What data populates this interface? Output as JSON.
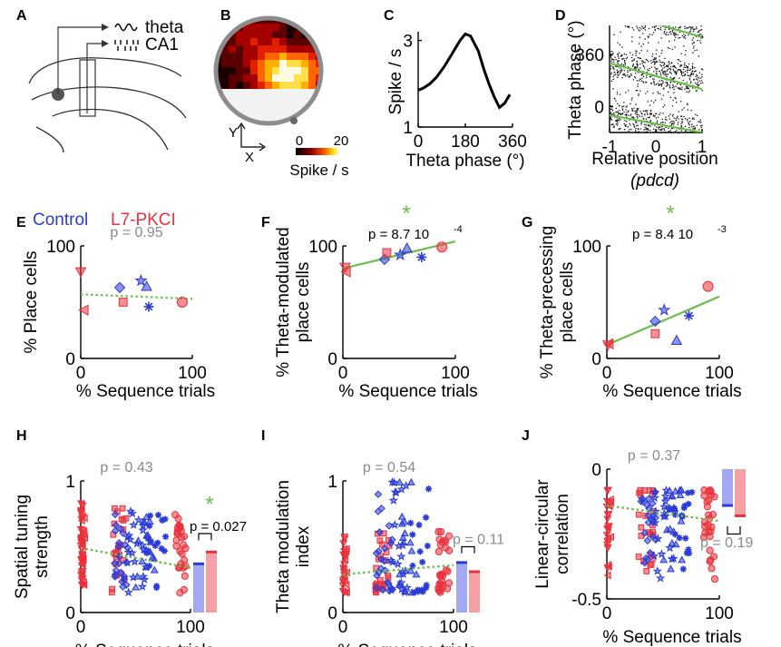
{
  "colors": {
    "control": "#2b3bd6",
    "l7": "#e8323c",
    "fit": "#6abf4b",
    "gray": "#8a8a8a",
    "bar_control": "#a3a8f2",
    "bar_l7": "#f4a0a4"
  },
  "panels": {
    "A": "A",
    "B": "B",
    "C": "C",
    "D": "D",
    "E": "E",
    "F": "F",
    "G": "G",
    "H": "H",
    "I": "I",
    "J": "J"
  },
  "schematic": {
    "theta_label": "theta",
    "ca1_label": "CA1"
  },
  "heatmap": {
    "x_label": "X",
    "y_label": "Y",
    "cbar_min": "0",
    "cbar_max": "20",
    "cbar_label": "Spike / s"
  },
  "legend": {
    "control": "Control",
    "l7": "L7-PKCI"
  },
  "common": {
    "seq_xlabel": "% Sequence trials"
  },
  "chart_data": [
    {
      "id": "C",
      "type": "line",
      "xlabel": "Theta phase (°)",
      "ylabel": "Spike / s",
      "xticks": [
        "0",
        "180",
        "360"
      ],
      "yticks": [
        "1",
        "3"
      ],
      "xlim": [
        0,
        360
      ],
      "ylim": [
        1,
        3.2
      ],
      "x": [
        0,
        20,
        45,
        70,
        100,
        130,
        160,
        180,
        200,
        230,
        250,
        270,
        290,
        310,
        330,
        350
      ],
      "y": [
        1.85,
        1.9,
        2.0,
        2.15,
        2.4,
        2.7,
        3.0,
        3.15,
        3.1,
        2.75,
        2.35,
        2.0,
        1.7,
        1.45,
        1.55,
        1.75
      ]
    },
    {
      "id": "D",
      "type": "scatter",
      "xlabel": "Relative position",
      "xlabel2": "(pdcd)",
      "ylabel": "Theta phase (°)",
      "xticks": [
        "-1",
        "0",
        "1"
      ],
      "yticks": [
        "0",
        "360"
      ],
      "xlim": [
        -1,
        1
      ],
      "ylim": [
        -180,
        560
      ],
      "fit_lines": [
        {
          "x": [
            -1,
            1
          ],
          "y": [
            -60,
            -180
          ]
        },
        {
          "x": [
            -1,
            1
          ],
          "y": [
            300,
            120
          ]
        },
        {
          "x": [
            -1,
            1
          ],
          "y": [
            660,
            480
          ]
        }
      ]
    },
    {
      "id": "E",
      "type": "scatter",
      "ylabel": "% Place cells",
      "xticks": [
        "0",
        "100"
      ],
      "yticks": [
        "0",
        "100"
      ],
      "xlim": [
        0,
        100
      ],
      "ylim": [
        0,
        100
      ],
      "p_text": "p = 0.95",
      "fit": {
        "x": [
          0,
          100
        ],
        "y": [
          57,
          53
        ],
        "style": "dotted"
      },
      "points": [
        {
          "x": 0,
          "y": 77,
          "g": "l7",
          "m": "tri-down"
        },
        {
          "x": 3,
          "y": 43,
          "g": "l7",
          "m": "tri-left"
        },
        {
          "x": 35,
          "y": 63,
          "g": "control",
          "m": "diamond"
        },
        {
          "x": 38,
          "y": 50,
          "g": "l7",
          "m": "square"
        },
        {
          "x": 54,
          "y": 69,
          "g": "control",
          "m": "star"
        },
        {
          "x": 59,
          "y": 64,
          "g": "control",
          "m": "tri-up"
        },
        {
          "x": 61,
          "y": 46,
          "g": "control",
          "m": "asterisk"
        },
        {
          "x": 91,
          "y": 50,
          "g": "l7",
          "m": "circle"
        }
      ]
    },
    {
      "id": "F",
      "type": "scatter",
      "ylabel": "% Theta-modulated",
      "ylabel2": "place cells",
      "xticks": [
        "0",
        "100"
      ],
      "yticks": [
        "0",
        "100"
      ],
      "xlim": [
        0,
        100
      ],
      "ylim": [
        0,
        100
      ],
      "p_text": "p = 8.7 10",
      "p_exp": "-4",
      "star": "*",
      "fit": {
        "x": [
          0,
          100
        ],
        "y": [
          80,
          104
        ],
        "style": "solid"
      },
      "points": [
        {
          "x": 2,
          "y": 81,
          "g": "l7",
          "m": "tri-down"
        },
        {
          "x": 3,
          "y": 77,
          "g": "l7",
          "m": "tri-left"
        },
        {
          "x": 37,
          "y": 88,
          "g": "control",
          "m": "diamond"
        },
        {
          "x": 39,
          "y": 94,
          "g": "l7",
          "m": "square"
        },
        {
          "x": 51,
          "y": 92,
          "g": "control",
          "m": "star"
        },
        {
          "x": 57,
          "y": 98,
          "g": "control",
          "m": "tri-up"
        },
        {
          "x": 70,
          "y": 90,
          "g": "control",
          "m": "asterisk"
        },
        {
          "x": 88,
          "y": 99,
          "g": "l7",
          "m": "circle"
        }
      ]
    },
    {
      "id": "G",
      "type": "scatter",
      "ylabel": "% Theta-precessing",
      "ylabel2": "place cells",
      "xticks": [
        "0",
        "100"
      ],
      "yticks": [
        "0",
        "100"
      ],
      "xlim": [
        0,
        100
      ],
      "ylim": [
        0,
        100
      ],
      "p_text": "p = 8.4 10",
      "p_exp": "-3",
      "star": "*",
      "fit": {
        "x": [
          0,
          100
        ],
        "y": [
          12,
          55
        ],
        "style": "solid"
      },
      "points": [
        {
          "x": 1,
          "y": 12,
          "g": "l7",
          "m": "tri-down"
        },
        {
          "x": 2,
          "y": 13,
          "g": "l7",
          "m": "tri-left"
        },
        {
          "x": 43,
          "y": 33,
          "g": "control",
          "m": "diamond"
        },
        {
          "x": 43,
          "y": 22,
          "g": "l7",
          "m": "square"
        },
        {
          "x": 51,
          "y": 43,
          "g": "control",
          "m": "star"
        },
        {
          "x": 62,
          "y": 16,
          "g": "control",
          "m": "tri-up"
        },
        {
          "x": 73,
          "y": 38,
          "g": "control",
          "m": "asterisk"
        },
        {
          "x": 90,
          "y": 64,
          "g": "l7",
          "m": "circle"
        }
      ]
    },
    {
      "id": "H",
      "type": "scatter",
      "ylabel": "Spatial tuning",
      "ylabel2": "strength",
      "xticks": [
        "0",
        "100"
      ],
      "yticks": [
        "0",
        "1"
      ],
      "xlim": [
        0,
        100
      ],
      "ylim": [
        0,
        1
      ],
      "p_text": "p = 0.43",
      "p_bar": "p = 0.027",
      "star": "*",
      "fit": {
        "x": [
          0,
          100
        ],
        "y": [
          0.49,
          0.34
        ],
        "style": "dotted"
      },
      "bars": [
        {
          "name": "Control",
          "value": 0.37
        },
        {
          "name": "L7-PKCI",
          "value": 0.46
        }
      ]
    },
    {
      "id": "I",
      "type": "scatter",
      "ylabel": "Theta modulation",
      "ylabel2": "index",
      "xticks": [
        "0",
        "100"
      ],
      "yticks": [
        "0",
        "1"
      ],
      "xlim": [
        0,
        100
      ],
      "ylim": [
        0,
        1
      ],
      "p_text": "p = 0.54",
      "p_bar": "p = 0.11",
      "fit": {
        "x": [
          0,
          100
        ],
        "y": [
          0.29,
          0.36
        ],
        "style": "dotted"
      },
      "bars": [
        {
          "name": "Control",
          "value": 0.38
        },
        {
          "name": "L7-PKCI",
          "value": 0.31
        }
      ]
    },
    {
      "id": "J",
      "type": "scatter",
      "ylabel": "Linear-circular",
      "ylabel2": "correlation",
      "xticks": [
        "0",
        "100"
      ],
      "yticks": [
        "0",
        "-0.5"
      ],
      "xlim": [
        0,
        100
      ],
      "ylim": [
        -0.5,
        0
      ],
      "p_text": "p = 0.37",
      "p_bar": "p = 0.19",
      "fit": {
        "x": [
          0,
          100
        ],
        "y": [
          -0.14,
          -0.2
        ],
        "style": "dotted"
      },
      "bars": [
        {
          "name": "Control",
          "value": -0.14
        },
        {
          "name": "L7-PKCI",
          "value": -0.18
        }
      ]
    }
  ]
}
